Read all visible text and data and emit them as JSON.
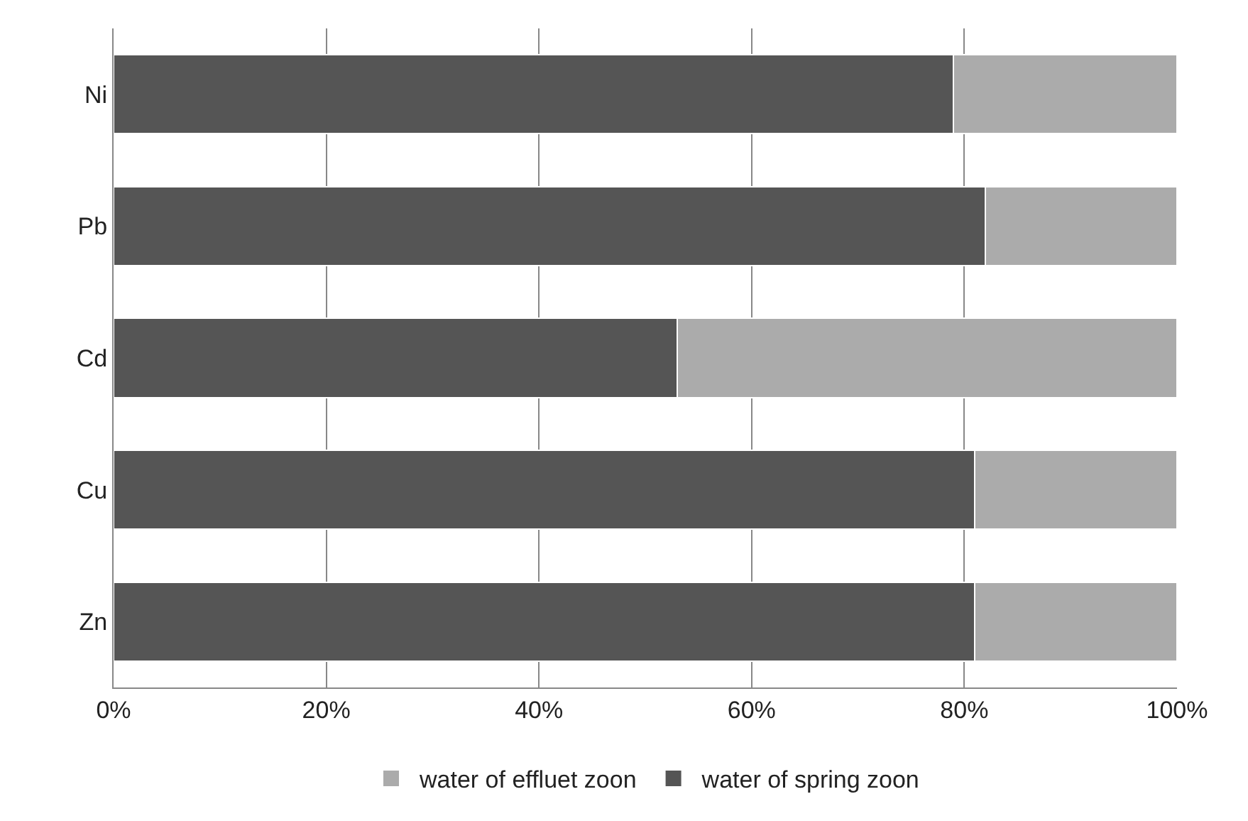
{
  "chart_data": {
    "type": "bar",
    "orientation": "horizontal",
    "stacked": true,
    "categories": [
      "Ni",
      "Pb",
      "Cd",
      "Cu",
      "Zn"
    ],
    "series": [
      {
        "name": "water of spring zoon",
        "color": "#555555",
        "values": [
          79,
          82,
          53,
          81,
          81
        ]
      },
      {
        "name": "water of effluet zoon",
        "color": "#ababab",
        "values": [
          21,
          18,
          47,
          19,
          19
        ]
      }
    ],
    "xlim": [
      0,
      100
    ],
    "xticks": [
      {
        "value": 0,
        "label": "0%"
      },
      {
        "value": 20,
        "label": "20%"
      },
      {
        "value": 40,
        "label": "40%"
      },
      {
        "value": 60,
        "label": "60%"
      },
      {
        "value": 80,
        "label": "80%"
      },
      {
        "value": 100,
        "label": "100%"
      }
    ],
    "grid": "x",
    "legend": "bottom"
  }
}
